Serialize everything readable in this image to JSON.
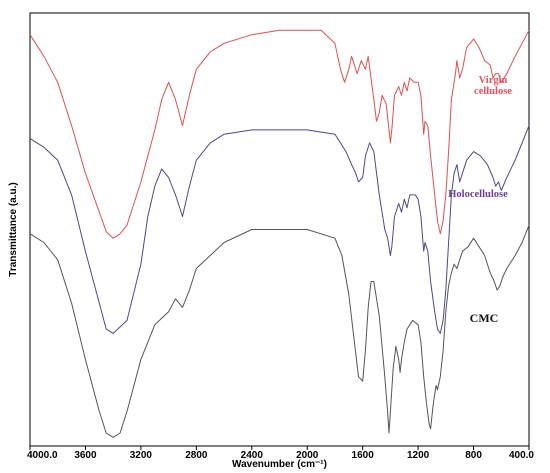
{
  "chart_data": {
    "type": "line",
    "title": "",
    "xlabel": "Wavenumber (cm⁻¹)",
    "ylabel": "Transmittance (a.u.)",
    "xlim": [
      4000,
      400
    ],
    "x_reversed": true,
    "x_ticks": [
      "4000.0",
      "3600",
      "3200",
      "2800",
      "2400",
      "2000",
      "1600",
      "1200",
      "800",
      "400.0"
    ],
    "ylim": [
      0,
      100
    ],
    "grid": false,
    "legend": "none",
    "series": [
      {
        "name": "Virgin cellulose",
        "color": "#d9534f",
        "points": [
          [
            4000,
            95
          ],
          [
            3900,
            90
          ],
          [
            3800,
            84
          ],
          [
            3700,
            74
          ],
          [
            3600,
            63
          ],
          [
            3500,
            54
          ],
          [
            3450,
            49.5
          ],
          [
            3400,
            48
          ],
          [
            3350,
            49
          ],
          [
            3300,
            51
          ],
          [
            3200,
            61
          ],
          [
            3100,
            73
          ],
          [
            3050,
            80
          ],
          [
            3000,
            84
          ],
          [
            2950,
            80
          ],
          [
            2900,
            74
          ],
          [
            2850,
            81
          ],
          [
            2800,
            87
          ],
          [
            2700,
            91
          ],
          [
            2600,
            93
          ],
          [
            2400,
            95
          ],
          [
            2200,
            96
          ],
          [
            2000,
            96
          ],
          [
            1900,
            96
          ],
          [
            1800,
            93
          ],
          [
            1760,
            87
          ],
          [
            1730,
            84
          ],
          [
            1700,
            87
          ],
          [
            1680,
            90
          ],
          [
            1660,
            88
          ],
          [
            1640,
            86
          ],
          [
            1610,
            89
          ],
          [
            1580,
            87
          ],
          [
            1560,
            90
          ],
          [
            1520,
            80
          ],
          [
            1500,
            75
          ],
          [
            1480,
            77
          ],
          [
            1460,
            81
          ],
          [
            1430,
            79
          ],
          [
            1400,
            70
          ],
          [
            1390,
            73
          ],
          [
            1370,
            81
          ],
          [
            1340,
            83
          ],
          [
            1320,
            81
          ],
          [
            1300,
            84
          ],
          [
            1280,
            82
          ],
          [
            1260,
            85
          ],
          [
            1230,
            84
          ],
          [
            1200,
            84
          ],
          [
            1180,
            81
          ],
          [
            1160,
            72
          ],
          [
            1150,
            75
          ],
          [
            1130,
            74
          ],
          [
            1110,
            67
          ],
          [
            1080,
            58
          ],
          [
            1060,
            52
          ],
          [
            1040,
            49
          ],
          [
            1020,
            52
          ],
          [
            1000,
            58
          ],
          [
            980,
            68
          ],
          [
            960,
            80
          ],
          [
            930,
            86
          ],
          [
            920,
            89
          ],
          [
            900,
            85
          ],
          [
            880,
            87
          ],
          [
            850,
            92
          ],
          [
            800,
            94
          ],
          [
            760,
            92
          ],
          [
            720,
            89
          ],
          [
            680,
            88
          ],
          [
            660,
            85
          ],
          [
            640,
            86
          ],
          [
            620,
            86
          ],
          [
            600,
            84
          ],
          [
            560,
            86
          ],
          [
            500,
            90
          ],
          [
            450,
            93
          ],
          [
            400,
            96
          ]
        ]
      },
      {
        "name": "Holocellulose",
        "color": "#4a4a8a",
        "points": [
          [
            4000,
            71
          ],
          [
            3900,
            69
          ],
          [
            3800,
            66
          ],
          [
            3700,
            58
          ],
          [
            3600,
            45
          ],
          [
            3500,
            33
          ],
          [
            3450,
            27
          ],
          [
            3400,
            26
          ],
          [
            3300,
            29
          ],
          [
            3200,
            42
          ],
          [
            3150,
            53
          ],
          [
            3100,
            60
          ],
          [
            3050,
            64
          ],
          [
            3000,
            62
          ],
          [
            2950,
            58
          ],
          [
            2900,
            53
          ],
          [
            2850,
            60
          ],
          [
            2800,
            66
          ],
          [
            2700,
            70
          ],
          [
            2600,
            72
          ],
          [
            2400,
            73
          ],
          [
            2000,
            73
          ],
          [
            1800,
            72
          ],
          [
            1720,
            68
          ],
          [
            1680,
            65
          ],
          [
            1650,
            63
          ],
          [
            1630,
            61
          ],
          [
            1600,
            62
          ],
          [
            1580,
            67
          ],
          [
            1550,
            70
          ],
          [
            1520,
            68
          ],
          [
            1480,
            58
          ],
          [
            1440,
            50
          ],
          [
            1420,
            48
          ],
          [
            1400,
            44
          ],
          [
            1390,
            46
          ],
          [
            1370,
            53
          ],
          [
            1340,
            56
          ],
          [
            1320,
            54
          ],
          [
            1300,
            57
          ],
          [
            1280,
            55
          ],
          [
            1260,
            58
          ],
          [
            1220,
            58
          ],
          [
            1200,
            57
          ],
          [
            1180,
            53
          ],
          [
            1160,
            45
          ],
          [
            1150,
            47
          ],
          [
            1130,
            45
          ],
          [
            1110,
            38
          ],
          [
            1080,
            31
          ],
          [
            1060,
            27
          ],
          [
            1040,
            26
          ],
          [
            1020,
            29
          ],
          [
            1000,
            36
          ],
          [
            980,
            47
          ],
          [
            960,
            58
          ],
          [
            940,
            63
          ],
          [
            920,
            65
          ],
          [
            900,
            61
          ],
          [
            880,
            63
          ],
          [
            850,
            66
          ],
          [
            800,
            68
          ],
          [
            750,
            67
          ],
          [
            700,
            65
          ],
          [
            660,
            62
          ],
          [
            640,
            60
          ],
          [
            620,
            61
          ],
          [
            600,
            59
          ],
          [
            560,
            62
          ],
          [
            500,
            66
          ],
          [
            450,
            70
          ],
          [
            400,
            74
          ]
        ]
      },
      {
        "name": "CMC",
        "color": "#555555",
        "points": [
          [
            4000,
            49
          ],
          [
            3900,
            47
          ],
          [
            3800,
            43
          ],
          [
            3700,
            33
          ],
          [
            3600,
            20
          ],
          [
            3500,
            8
          ],
          [
            3450,
            3
          ],
          [
            3400,
            2
          ],
          [
            3350,
            3
          ],
          [
            3300,
            8
          ],
          [
            3200,
            20
          ],
          [
            3100,
            28
          ],
          [
            3000,
            31
          ],
          [
            2950,
            34
          ],
          [
            2900,
            32
          ],
          [
            2850,
            36
          ],
          [
            2800,
            41
          ],
          [
            2600,
            47
          ],
          [
            2400,
            50
          ],
          [
            2000,
            50
          ],
          [
            1800,
            48
          ],
          [
            1750,
            44
          ],
          [
            1700,
            35
          ],
          [
            1660,
            24
          ],
          [
            1630,
            16
          ],
          [
            1600,
            15
          ],
          [
            1580,
            22
          ],
          [
            1560,
            32
          ],
          [
            1540,
            38
          ],
          [
            1520,
            38
          ],
          [
            1480,
            30
          ],
          [
            1440,
            16
          ],
          [
            1420,
            8
          ],
          [
            1410,
            3
          ],
          [
            1400,
            8
          ],
          [
            1380,
            18
          ],
          [
            1360,
            23
          ],
          [
            1340,
            20
          ],
          [
            1330,
            17
          ],
          [
            1320,
            20
          ],
          [
            1300,
            24
          ],
          [
            1280,
            27
          ],
          [
            1260,
            28
          ],
          [
            1240,
            29
          ],
          [
            1200,
            28
          ],
          [
            1180,
            24
          ],
          [
            1160,
            16
          ],
          [
            1140,
            10
          ],
          [
            1120,
            5
          ],
          [
            1110,
            4
          ],
          [
            1090,
            10
          ],
          [
            1070,
            14
          ],
          [
            1060,
            13
          ],
          [
            1040,
            16
          ],
          [
            1020,
            22
          ],
          [
            1000,
            31
          ],
          [
            980,
            37
          ],
          [
            960,
            40
          ],
          [
            940,
            42
          ],
          [
            920,
            41
          ],
          [
            900,
            43
          ],
          [
            880,
            45
          ],
          [
            840,
            46
          ],
          [
            800,
            48
          ],
          [
            760,
            46
          ],
          [
            720,
            44
          ],
          [
            680,
            40
          ],
          [
            650,
            38
          ],
          [
            630,
            36
          ],
          [
            610,
            37
          ],
          [
            590,
            39
          ],
          [
            560,
            41
          ],
          [
            500,
            44
          ],
          [
            450,
            47
          ],
          [
            400,
            51
          ]
        ]
      }
    ],
    "annotations": [
      {
        "lines": [
          "Virgin",
          "cellulose"
        ],
        "color": "#e8505f"
      },
      {
        "lines": [
          "Holocellulose"
        ],
        "color": "#6a3f9a"
      },
      {
        "lines": [
          "CMC"
        ],
        "color": "#111111"
      }
    ]
  }
}
